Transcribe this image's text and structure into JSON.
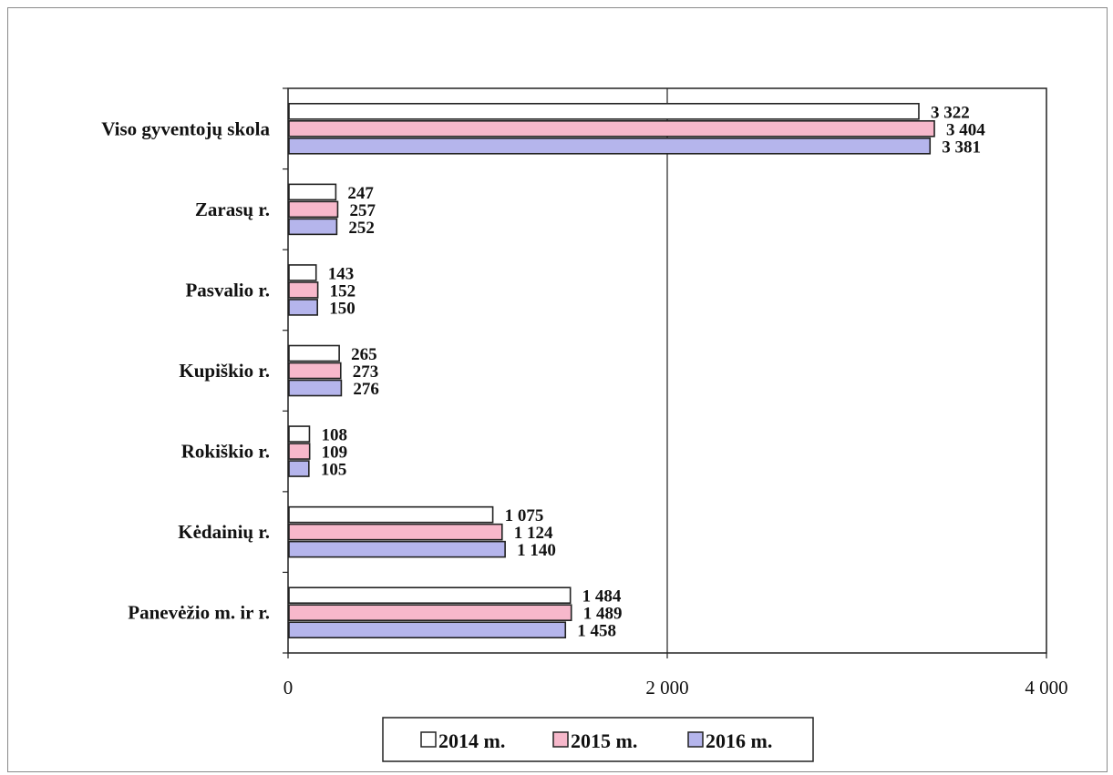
{
  "chart_data": {
    "type": "bar",
    "orientation": "horizontal",
    "categories": [
      "Viso gyventojų skola",
      "Zarasų r.",
      "Pasvalio r.",
      "Kupiškio r.",
      "Rokiškio r.",
      "Kėdainių r.",
      "Panevėžio m. ir r."
    ],
    "series": [
      {
        "name": "2014 m.",
        "color": "#ffffff",
        "values": [
          3322,
          247,
          143,
          265,
          108,
          1075,
          1484
        ],
        "labels": [
          "3 322",
          "247",
          "143",
          "265",
          "108",
          "1 075",
          "1 484"
        ]
      },
      {
        "name": "2015 m.",
        "color": "#f7b8cb",
        "values": [
          3404,
          257,
          152,
          273,
          109,
          1124,
          1489
        ],
        "labels": [
          "3 404",
          "257",
          "152",
          "273",
          "109",
          "1 124",
          "1 489"
        ]
      },
      {
        "name": "2016 m.",
        "color": "#b5b5ec",
        "values": [
          3381,
          252,
          150,
          276,
          105,
          1140,
          1458
        ],
        "labels": [
          "3 381",
          "252",
          "150",
          "276",
          "105",
          "1 140",
          "1 458"
        ]
      }
    ],
    "xlim": [
      0,
      4000
    ],
    "xticks": [
      0,
      2000,
      4000
    ],
    "xtick_labels": [
      "0",
      "2 000",
      "4 000"
    ],
    "grid": "vertical",
    "legend_position": "bottom"
  }
}
